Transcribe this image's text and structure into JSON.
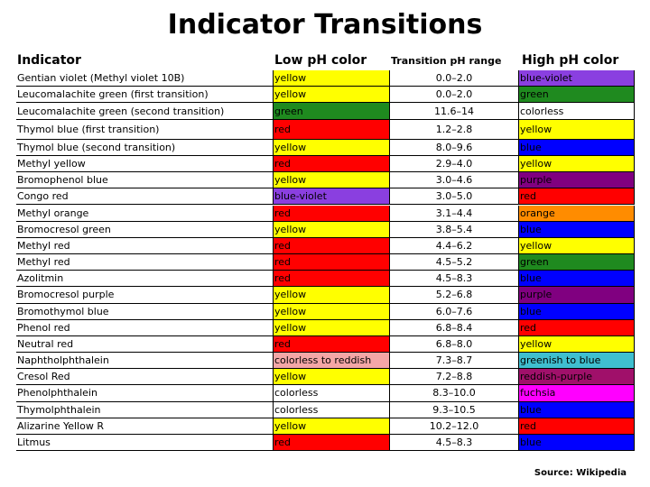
{
  "title": "Indicator Transitions",
  "table": {
    "header": [
      "Indicator",
      "Low pH color",
      "Transition pH range",
      "High pH color"
    ],
    "rows": [
      [
        "Gentian violet (Methyl violet 10B)",
        "yellow",
        "0.0–2.0",
        "blue-violet"
      ],
      [
        "Leucomalachite green (first transition)",
        "yellow",
        "0.0–2.0",
        "green"
      ],
      [
        "Leucomalachite green (second transition)",
        "green",
        "11.6–14",
        "colorless"
      ],
      [
        "Thymol blue (first transition)",
        "red",
        "1.2–2.8",
        "yellow"
      ],
      [
        "Thymol blue (second transition)",
        "yellow",
        "8.0–9.6",
        "blue"
      ],
      [
        "Methyl yellow",
        "red",
        "2.9–4.0",
        "yellow"
      ],
      [
        "Bromophenol blue",
        "yellow",
        "3.0–4.6",
        "purple"
      ],
      [
        "Congo red",
        "blue-violet",
        "3.0–5.0",
        "red"
      ],
      [
        "Methyl orange",
        "red",
        "3.1–4.4",
        "orange"
      ],
      [
        "Bromocresol green",
        "yellow",
        "3.8–5.4",
        "blue"
      ],
      [
        "Methyl red",
        "red",
        "4.4–6.2",
        "yellow"
      ],
      [
        "Methyl red",
        "red",
        "4.5–5.2",
        "green"
      ],
      [
        "Azolitmin",
        "red",
        "4.5–8.3",
        "blue"
      ],
      [
        "Bromocresol purple",
        "yellow",
        "5.2–6.8",
        "purple"
      ],
      [
        "Bromothymol blue",
        "yellow",
        "6.0–7.6",
        "blue"
      ],
      [
        "Phenol red",
        "yellow",
        "6.8–8.4",
        "red"
      ],
      [
        "Neutral red",
        "red",
        "6.8–8.0",
        "yellow"
      ],
      [
        "Naphtholphthalein",
        "colorless to reddish",
        "7.3–8.7",
        "greenish to blue"
      ],
      [
        "Cresol Red",
        "yellow",
        "7.2–8.8",
        "reddish-purple"
      ],
      [
        "Phenolphthalein",
        "colorless",
        "8.3–10.0",
        "fuchsia"
      ],
      [
        "Thymolphthalein",
        "colorless",
        "9.3–10.5",
        "blue"
      ],
      [
        "Alizarine Yellow R",
        "yellow",
        "10.2–12.0",
        "red"
      ],
      [
        "Litmus",
        "red",
        "4.5–8.3",
        "blue"
      ]
    ]
  },
  "source": "Source: Wikipedia"
}
